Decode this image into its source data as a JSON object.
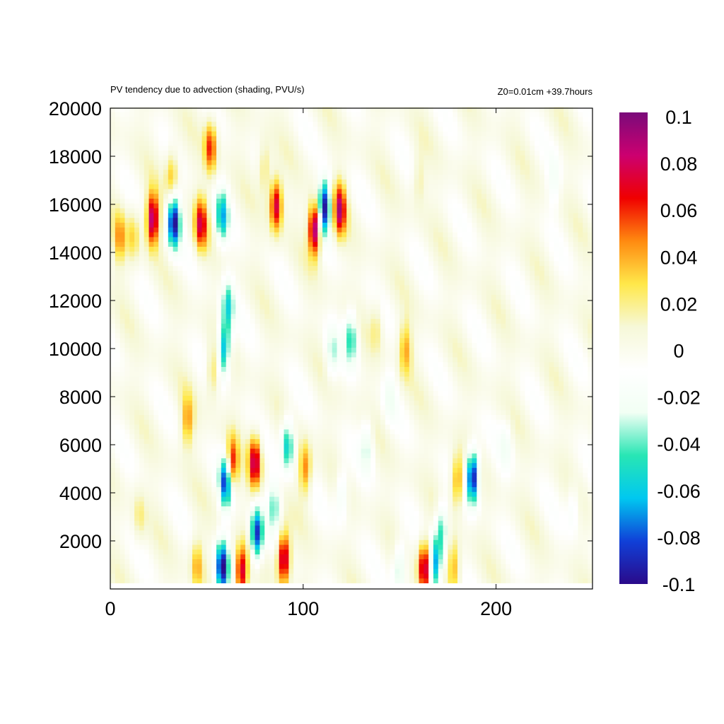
{
  "header": {
    "title": "PV tendency due to advection (shading, PVU/s)",
    "info": "Z0=0.01cm   +39.7hours"
  },
  "chart_data": {
    "type": "heatmap",
    "title": "PV tendency due to advection (shading, PVU/s)",
    "annotation": "Z0=0.01cm   +39.7hours",
    "xlabel": "",
    "ylabel": "",
    "xlim": [
      0,
      250
    ],
    "ylim": [
      0,
      20000
    ],
    "xticks": [
      0,
      100,
      200
    ],
    "yticks": [
      2000,
      4000,
      6000,
      8000,
      10000,
      12000,
      14000,
      16000,
      18000,
      20000
    ],
    "colorbar": {
      "range": [
        -0.1,
        0.1
      ],
      "ticks": [
        0.1,
        0.08,
        0.06,
        0.04,
        0.02,
        0,
        -0.02,
        -0.04,
        -0.06,
        -0.08,
        -0.1
      ],
      "tick_labels": [
        "0.1",
        "0.08",
        "0.06",
        "0.04",
        "0.02",
        "0",
        "-0.02",
        "-0.04",
        "-0.06",
        "-0.08",
        "-0.1"
      ],
      "colormap": [
        "#2a0a8a",
        "#1040d8",
        "#00c8f0",
        "#28e6b4",
        "#f2fff4",
        "#ffffff",
        "#f6f8d8",
        "#ffe84a",
        "#ff8a10",
        "#f00000",
        "#cc0070",
        "#7a0a7a"
      ]
    },
    "grid": false,
    "features": [
      {
        "x": 60,
        "y": 4500,
        "value": -0.09
      },
      {
        "x": 75,
        "y": 5300,
        "value": 0.08
      },
      {
        "x": 76,
        "y": 2300,
        "value": -0.09
      },
      {
        "x": 63,
        "y": 5200,
        "value": 0.07
      },
      {
        "x": 58,
        "y": 900,
        "value": -0.1
      },
      {
        "x": 90,
        "y": 1300,
        "value": 0.09
      },
      {
        "x": 68,
        "y": 700,
        "value": 0.08
      },
      {
        "x": 92,
        "y": 6000,
        "value": -0.06
      },
      {
        "x": 101,
        "y": 5000,
        "value": 0.05
      },
      {
        "x": 188,
        "y": 4700,
        "value": -0.1
      },
      {
        "x": 180,
        "y": 4500,
        "value": 0.05
      },
      {
        "x": 172,
        "y": 2500,
        "value": -0.05
      },
      {
        "x": 163,
        "y": 900,
        "value": 0.09
      },
      {
        "x": 168,
        "y": 1000,
        "value": -0.07
      },
      {
        "x": 178,
        "y": 900,
        "value": 0.04
      },
      {
        "x": 150,
        "y": 900,
        "value": -0.04
      },
      {
        "x": 59,
        "y": 10000,
        "value": -0.07
      },
      {
        "x": 61,
        "y": 11800,
        "value": -0.05
      },
      {
        "x": 40,
        "y": 7000,
        "value": 0.04
      },
      {
        "x": 53,
        "y": 9000,
        "value": 0.03
      },
      {
        "x": 22,
        "y": 15400,
        "value": 0.09
      },
      {
        "x": 33,
        "y": 15300,
        "value": -0.1
      },
      {
        "x": 47,
        "y": 15200,
        "value": 0.07
      },
      {
        "x": 5,
        "y": 14600,
        "value": 0.04
      },
      {
        "x": 12,
        "y": 14700,
        "value": 0.03
      },
      {
        "x": 58,
        "y": 15500,
        "value": -0.06
      },
      {
        "x": 86,
        "y": 16000,
        "value": 0.08
      },
      {
        "x": 111,
        "y": 15900,
        "value": -0.1
      },
      {
        "x": 106,
        "y": 15000,
        "value": 0.1
      },
      {
        "x": 119,
        "y": 15800,
        "value": 0.08
      },
      {
        "x": 52,
        "y": 18400,
        "value": 0.06
      },
      {
        "x": 32,
        "y": 17200,
        "value": 0.04
      },
      {
        "x": 80,
        "y": 17500,
        "value": 0.03
      },
      {
        "x": 125,
        "y": 10500,
        "value": -0.05
      },
      {
        "x": 115,
        "y": 9800,
        "value": -0.03
      },
      {
        "x": 153,
        "y": 10000,
        "value": 0.04
      },
      {
        "x": 138,
        "y": 11000,
        "value": 0.02
      },
      {
        "x": 145,
        "y": 8000,
        "value": -0.02
      },
      {
        "x": 133,
        "y": 6000,
        "value": -0.03
      },
      {
        "x": 205,
        "y": 6000,
        "value": -0.02
      },
      {
        "x": 230,
        "y": 17000,
        "value": -0.02
      },
      {
        "x": 160,
        "y": 17000,
        "value": 0.02
      },
      {
        "x": 85,
        "y": 3500,
        "value": -0.04
      },
      {
        "x": 45,
        "y": 1000,
        "value": 0.04
      },
      {
        "x": 120,
        "y": 4000,
        "value": -0.03
      },
      {
        "x": 240,
        "y": 3500,
        "value": -0.02
      },
      {
        "x": 15,
        "y": 3000,
        "value": 0.02
      }
    ]
  }
}
